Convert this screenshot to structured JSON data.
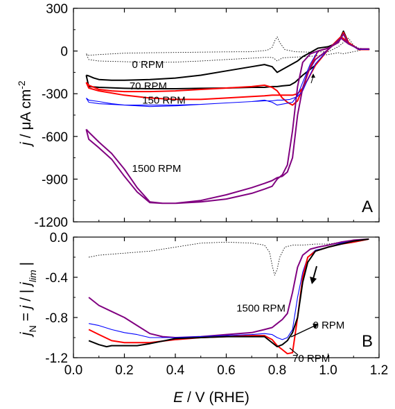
{
  "chart_data": [
    {
      "type": "line",
      "panel": "A",
      "ylabel": "j / μA cm-2",
      "ylabel_parts": {
        "j": "j",
        "slash": " / μA cm",
        "sup": "-2"
      },
      "ylim": [
        -1200,
        300
      ],
      "yticks": [
        300,
        0,
        -300,
        -600,
        -900,
        -1200
      ],
      "xlim": [
        0.0,
        1.2
      ],
      "grid": false,
      "series": [
        {
          "name": "",
          "color": "#000000",
          "style": "dotted",
          "x": [
            0.05,
            0.06,
            0.1,
            0.2,
            0.3,
            0.4,
            0.5,
            0.6,
            0.7,
            0.76,
            0.78,
            0.79,
            0.8,
            0.81,
            0.83,
            0.87,
            0.93,
            1.0,
            1.04,
            1.06,
            1.08,
            1.1,
            1.12,
            1.15,
            1.1,
            1.07,
            1.06,
            1.04,
            1.0,
            0.95,
            0.9,
            0.85,
            0.82,
            0.81,
            0.8,
            0.79,
            0.78,
            0.75,
            0.7,
            0.6,
            0.5,
            0.4,
            0.3,
            0.2,
            0.1,
            0.06,
            0.05
          ],
          "y": [
            -20,
            -30,
            -25,
            -15,
            -12,
            -10,
            -8,
            -6,
            -5,
            5,
            25,
            70,
            100,
            60,
            10,
            -5,
            -8,
            -5,
            30,
            60,
            90,
            40,
            20,
            15,
            -5,
            -15,
            -20,
            -12,
            -25,
            -35,
            -40,
            -45,
            -48,
            -60,
            -70,
            -55,
            -45,
            -45,
            -50,
            -60,
            -70,
            -78,
            -80,
            -75,
            -70,
            -60,
            -20
          ]
        },
        {
          "name": "0 RPM",
          "color": "#000000",
          "style": "solid",
          "x": [
            0.05,
            0.06,
            0.08,
            0.1,
            0.15,
            0.2,
            0.3,
            0.4,
            0.5,
            0.6,
            0.7,
            0.75,
            0.78,
            0.8,
            0.82,
            0.85,
            0.88,
            0.9,
            0.93,
            0.96,
            1.0,
            1.04,
            1.06,
            1.08,
            1.12,
            1.16,
            1.16,
            1.12,
            1.08,
            1.05,
            1.0,
            0.95,
            0.9,
            0.87,
            0.85,
            0.82,
            0.8,
            0.78,
            0.75,
            0.7,
            0.6,
            0.5,
            0.4,
            0.3,
            0.2,
            0.1,
            0.06,
            0.05
          ],
          "y": [
            -170,
            -175,
            -190,
            -200,
            -205,
            -205,
            -200,
            -190,
            -170,
            -140,
            -110,
            -95,
            -110,
            -150,
            -130,
            -100,
            -70,
            -40,
            -10,
            20,
            30,
            60,
            140,
            60,
            10,
            10,
            10,
            10,
            60,
            100,
            10,
            -100,
            -170,
            -220,
            -240,
            -245,
            -250,
            -250,
            -255,
            -255,
            -260,
            -262,
            -265,
            -265,
            -262,
            -255,
            -250,
            -170
          ]
        },
        {
          "name": "70 RPM",
          "color": "#ff0000",
          "style": "solid",
          "x": [
            0.05,
            0.06,
            0.1,
            0.15,
            0.2,
            0.3,
            0.4,
            0.5,
            0.6,
            0.7,
            0.75,
            0.78,
            0.8,
            0.82,
            0.84,
            0.86,
            0.88,
            0.9,
            0.93,
            0.96,
            1.0,
            1.04,
            1.06,
            1.08,
            1.12,
            1.16,
            1.16,
            1.12,
            1.08,
            1.05,
            1.0,
            0.95,
            0.92,
            0.9,
            0.88,
            0.86,
            0.84,
            0.82,
            0.8,
            0.78,
            0.75,
            0.7,
            0.6,
            0.5,
            0.4,
            0.3,
            0.2,
            0.1,
            0.06,
            0.05
          ],
          "y": [
            -220,
            -240,
            -270,
            -280,
            -285,
            -285,
            -280,
            -270,
            -260,
            -250,
            -240,
            -255,
            -280,
            -330,
            -360,
            -380,
            -350,
            -260,
            -110,
            0,
            20,
            60,
            130,
            60,
            10,
            10,
            10,
            10,
            60,
            100,
            10,
            -100,
            -200,
            -260,
            -300,
            -310,
            -310,
            -310,
            -310,
            -310,
            -315,
            -320,
            -330,
            -340,
            -340,
            -330,
            -310,
            -280,
            -260,
            -220
          ]
        },
        {
          "name": "150 RPM",
          "color": "#0000ff",
          "style": "solid",
          "x": [
            0.05,
            0.06,
            0.1,
            0.15,
            0.2,
            0.3,
            0.4,
            0.5,
            0.6,
            0.7,
            0.75,
            0.78,
            0.8,
            0.83,
            0.86,
            0.88,
            0.9,
            0.93,
            0.96,
            1.0,
            1.04,
            1.06,
            1.08,
            1.12,
            1.16,
            1.16,
            1.12,
            1.08,
            1.05,
            1.0,
            0.95,
            0.92,
            0.9,
            0.88,
            0.85,
            0.82,
            0.8,
            0.78,
            0.75,
            0.7,
            0.6,
            0.5,
            0.4,
            0.3,
            0.2,
            0.1,
            0.06,
            0.05
          ],
          "y": [
            -330,
            -345,
            -355,
            -370,
            -380,
            -390,
            -385,
            -375,
            -365,
            -355,
            -345,
            -360,
            -380,
            -370,
            -360,
            -310,
            -220,
            -90,
            0,
            20,
            60,
            120,
            50,
            10,
            10,
            10,
            10,
            50,
            90,
            10,
            -90,
            -200,
            -280,
            -320,
            -340,
            -345,
            -345,
            -350,
            -350,
            -355,
            -365,
            -375,
            -380,
            -380,
            -380,
            -370,
            -360,
            -330
          ]
        },
        {
          "name": "1500 RPM",
          "color": "#800080",
          "style": "solid",
          "x": [
            0.05,
            0.06,
            0.1,
            0.15,
            0.2,
            0.25,
            0.3,
            0.35,
            0.4,
            0.5,
            0.6,
            0.7,
            0.75,
            0.78,
            0.8,
            0.82,
            0.84,
            0.86,
            0.88,
            0.9,
            0.93,
            0.96,
            1.0,
            1.04,
            1.06,
            1.08,
            1.12,
            1.16,
            1.16,
            1.12,
            1.08,
            1.05,
            1.0,
            0.95,
            0.92,
            0.9,
            0.88,
            0.86,
            0.84,
            0.82,
            0.8,
            0.78,
            0.75,
            0.7,
            0.6,
            0.5,
            0.4,
            0.35,
            0.3,
            0.25,
            0.2,
            0.15,
            0.1,
            0.06,
            0.05
          ],
          "y": [
            -550,
            -570,
            -640,
            -720,
            -830,
            -960,
            -1060,
            -1070,
            -1070,
            -1060,
            -1040,
            -1000,
            -970,
            -950,
            -900,
            -870,
            -800,
            -560,
            -250,
            -80,
            -20,
            0,
            20,
            60,
            120,
            50,
            15,
            15,
            15,
            15,
            50,
            90,
            10,
            -60,
            -150,
            -260,
            -450,
            -750,
            -850,
            -880,
            -890,
            -910,
            -930,
            -960,
            -1010,
            -1050,
            -1070,
            -1070,
            -1065,
            -990,
            -880,
            -760,
            -680,
            -620,
            -550
          ]
        }
      ],
      "annotations": [
        {
          "text": "0 RPM",
          "x": 0.23,
          "y": -120
        },
        {
          "text": "70 RPM",
          "x": 0.22,
          "y": -270
        },
        {
          "text": "150 RPM",
          "x": 0.27,
          "y": -370
        },
        {
          "text": "1500 RPM",
          "x": 0.23,
          "y": -850
        }
      ],
      "panel_label": "A"
    },
    {
      "type": "line",
      "panel": "B",
      "xlabel": "E / V (RHE)",
      "xlabel_parts": {
        "e": "E",
        "rest": " / V (RHE)"
      },
      "ylabel": "jN = j / | jlim |",
      "ylabel_parts": {
        "j1": "j",
        "sub1": "N",
        "mid": " = ",
        "j2": "j",
        "mid2": " / | ",
        "j3": "j",
        "sub2": "lim",
        "end": " |"
      },
      "ylim": [
        -1.2,
        0.0
      ],
      "yticks": [
        0.0,
        -0.4,
        -0.8,
        -1.2
      ],
      "yticklabels": [
        "0.0",
        "-0.4",
        "-0.8",
        "-1.2"
      ],
      "xlim": [
        0.0,
        1.2
      ],
      "xticks": [
        0.0,
        0.2,
        0.4,
        0.6,
        0.8,
        1.0,
        1.2
      ],
      "xticklabels": [
        "0.0",
        "0.2",
        "0.4",
        "0.6",
        "0.8",
        "1.0",
        "1.2"
      ],
      "grid": false,
      "series": [
        {
          "name": "",
          "color": "#000000",
          "style": "dotted",
          "x": [
            0.06,
            0.1,
            0.2,
            0.3,
            0.4,
            0.5,
            0.6,
            0.7,
            0.75,
            0.77,
            0.78,
            0.79,
            0.8,
            0.81,
            0.83,
            0.86,
            0.9,
            0.95,
            1.0,
            1.05,
            1.1,
            1.15
          ],
          "y": [
            -0.2,
            -0.18,
            -0.16,
            -0.14,
            -0.1,
            -0.06,
            -0.05,
            -0.06,
            -0.08,
            -0.15,
            -0.28,
            -0.38,
            -0.32,
            -0.2,
            -0.1,
            -0.08,
            -0.08,
            -0.07,
            -0.07,
            -0.05,
            -0.03,
            -0.02
          ]
        },
        {
          "name": "1500 RPM",
          "color": "#800080",
          "style": "solid",
          "x": [
            0.06,
            0.1,
            0.15,
            0.2,
            0.25,
            0.3,
            0.35,
            0.4,
            0.5,
            0.6,
            0.7,
            0.75,
            0.78,
            0.8,
            0.82,
            0.84,
            0.86,
            0.88,
            0.9,
            0.93,
            0.96,
            1.0,
            1.05,
            1.1,
            1.16
          ],
          "y": [
            -0.6,
            -0.68,
            -0.74,
            -0.8,
            -0.88,
            -0.96,
            -0.99,
            -1.0,
            -0.99,
            -0.97,
            -0.95,
            -0.92,
            -0.9,
            -0.86,
            -0.82,
            -0.76,
            -0.55,
            -0.3,
            -0.18,
            -0.12,
            -0.1,
            -0.08,
            -0.05,
            -0.03,
            -0.02
          ]
        },
        {
          "name": "150 RPM",
          "color": "#0000ff",
          "style": "solid",
          "x": [
            0.06,
            0.1,
            0.15,
            0.2,
            0.25,
            0.3,
            0.4,
            0.5,
            0.6,
            0.7,
            0.75,
            0.78,
            0.8,
            0.82,
            0.84,
            0.86,
            0.88,
            0.9,
            0.92,
            0.95,
            1.0,
            1.05,
            1.1,
            1.16
          ],
          "y": [
            -0.86,
            -0.88,
            -0.92,
            -0.95,
            -0.97,
            -1.0,
            -1.0,
            -0.99,
            -0.98,
            -0.97,
            -0.96,
            -0.97,
            -1.0,
            -1.02,
            -1.0,
            -0.92,
            -0.6,
            -0.35,
            -0.2,
            -0.13,
            -0.1,
            -0.06,
            -0.04,
            -0.02
          ]
        },
        {
          "name": "70 RPM",
          "color": "#ff0000",
          "style": "solid",
          "x": [
            0.06,
            0.1,
            0.15,
            0.2,
            0.25,
            0.3,
            0.4,
            0.5,
            0.6,
            0.7,
            0.75,
            0.78,
            0.8,
            0.82,
            0.84,
            0.86,
            0.88,
            0.9,
            0.92,
            0.95,
            1.0,
            1.05,
            1.1,
            1.16
          ],
          "y": [
            -0.92,
            -0.97,
            -1.03,
            -1.05,
            -1.05,
            -1.05,
            -1.02,
            -1.0,
            -0.99,
            -0.98,
            -0.98,
            -1.02,
            -1.08,
            -1.12,
            -1.16,
            -1.15,
            -0.8,
            -0.4,
            -0.2,
            -0.14,
            -0.1,
            -0.07,
            -0.05,
            -0.02
          ]
        },
        {
          "name": "0 RPM",
          "color": "#000000",
          "style": "solid",
          "x": [
            0.06,
            0.1,
            0.13,
            0.15,
            0.2,
            0.25,
            0.3,
            0.4,
            0.5,
            0.6,
            0.7,
            0.75,
            0.78,
            0.8,
            0.82,
            0.84,
            0.86,
            0.88,
            0.9,
            0.92,
            0.95,
            1.0,
            1.05,
            1.1,
            1.16
          ],
          "y": [
            -1.03,
            -1.07,
            -1.09,
            -1.08,
            -1.08,
            -1.08,
            -1.06,
            -1.01,
            -1.0,
            -0.99,
            -0.99,
            -0.99,
            -1.05,
            -1.09,
            -1.07,
            -1.03,
            -0.95,
            -0.8,
            -0.45,
            -0.25,
            -0.14,
            -0.1,
            -0.07,
            -0.04,
            -0.02
          ]
        }
      ],
      "annotations": [
        {
          "text": "1500 RPM",
          "x": 0.64,
          "y": -0.74
        },
        {
          "text": "0 RPM",
          "x": 0.94,
          "y": -0.91
        },
        {
          "text": "70 RPM",
          "x": 0.86,
          "y": -1.24
        }
      ],
      "panel_label": "B"
    }
  ]
}
